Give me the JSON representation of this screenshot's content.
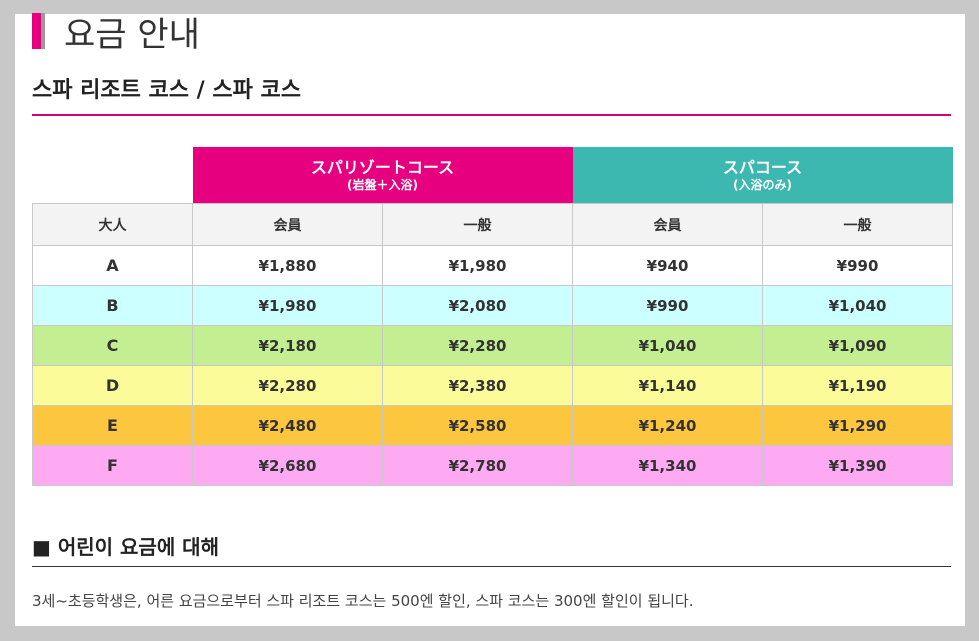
{
  "page": {
    "title": "요금 안내",
    "section_title": "스파 리조트 코스 / 스파 코스"
  },
  "table": {
    "courses": [
      {
        "name": "スパリゾートコース",
        "sub": "(岩盤＋入浴)",
        "color": "#e6007f"
      },
      {
        "name": "スパコース",
        "sub": "(入浴のみ)",
        "color": "#3db8b0"
      }
    ],
    "subheaders": [
      "大人",
      "会員",
      "一般",
      "会員",
      "一般"
    ],
    "rows": [
      {
        "rank": "A",
        "prices": [
          "¥1,880",
          "¥1,980",
          "¥940",
          "¥990"
        ],
        "color": "#ffffff"
      },
      {
        "rank": "B",
        "prices": [
          "¥1,980",
          "¥2,080",
          "¥990",
          "¥1,040"
        ],
        "color": "#ccffff"
      },
      {
        "rank": "C",
        "prices": [
          "¥2,180",
          "¥2,280",
          "¥1,040",
          "¥1,090"
        ],
        "color": "#c3ee91"
      },
      {
        "rank": "D",
        "prices": [
          "¥2,280",
          "¥2,380",
          "¥1,140",
          "¥1,190"
        ],
        "color": "#fbfb99"
      },
      {
        "rank": "E",
        "prices": [
          "¥2,480",
          "¥2,580",
          "¥1,240",
          "¥1,290"
        ],
        "color": "#fcc63f"
      },
      {
        "rank": "F",
        "prices": [
          "¥2,680",
          "¥2,780",
          "¥1,340",
          "¥1,390"
        ],
        "color": "#fdaaf3"
      }
    ]
  },
  "children": {
    "title": "■ 어린이 요금에 대해",
    "note": "3세~초등학생은, 어른 요금으로부터 스파 리조트 코스는 500엔 할인, 스파 코스는 300엔 할인이 됩니다."
  }
}
